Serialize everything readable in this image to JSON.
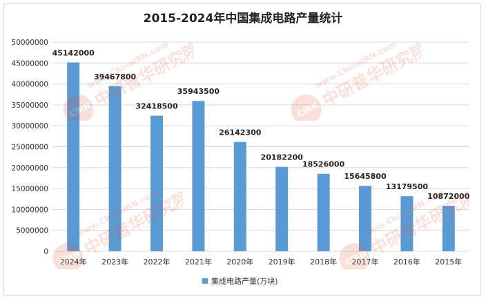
{
  "chart_data": {
    "type": "bar",
    "title": "2015-2024年中国集成电路产量统计",
    "categories": [
      "2024年",
      "2023年",
      "2022年",
      "2021年",
      "2020年",
      "2019年",
      "2018年",
      "2017年",
      "2016年",
      "2015年"
    ],
    "series": [
      {
        "name": "集成电路产量(万块)",
        "values": [
          45142000,
          39467800,
          32418500,
          35943500,
          26142300,
          20182200,
          18526000,
          15645800,
          13179500,
          10872000
        ],
        "data_labels": [
          "45142000",
          "39467800",
          "32418500",
          "35943500",
          "26142300",
          "20182200",
          "18526000",
          "15645800",
          "13179500",
          "10872000"
        ]
      }
    ],
    "ylim": [
      0,
      50000000
    ],
    "yticks": [
      0,
      5000000,
      10000000,
      15000000,
      20000000,
      25000000,
      30000000,
      35000000,
      40000000,
      45000000,
      50000000
    ],
    "ytick_labels": [
      "0",
      "5000000",
      "10000000",
      "15000000",
      "20000000",
      "25000000",
      "30000000",
      "35000000",
      "40000000",
      "45000000",
      "50000000"
    ],
    "grid": true,
    "legend": "bottom",
    "colors": {
      "bar": "#5b9bd5",
      "grid": "#d9d9d9"
    }
  },
  "watermark": {
    "text_latin": "www.ChinaIRN.com",
    "text_cn": "中研普华研究院",
    "logo_text": "CIRN"
  }
}
